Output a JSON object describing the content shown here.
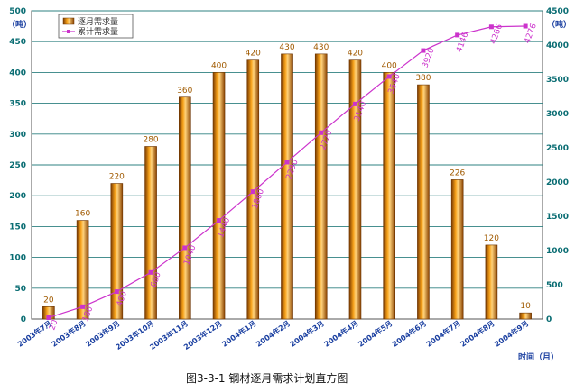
{
  "chart_data": {
    "type": "bar",
    "title": "图3-3-1   钢材逐月需求计划直方图",
    "categories": [
      "2003年7月",
      "2003年8月",
      "2003年9月",
      "2003年10月",
      "2003年11月",
      "2003年12月",
      "2004年1月",
      "2004年2月",
      "2004年3月",
      "2004年4月",
      "2004年5月",
      "2004年6月",
      "2004年7月",
      "2004年8月",
      "2004年9月"
    ],
    "series": [
      {
        "name": "逐月需求量",
        "type": "bar",
        "axis": "left",
        "values": [
          20,
          160,
          220,
          280,
          360,
          400,
          420,
          430,
          430,
          420,
          400,
          380,
          226,
          120,
          10
        ]
      },
      {
        "name": "累计需求量",
        "type": "line",
        "axis": "right",
        "values": [
          20,
          180,
          400,
          680,
          1040,
          1440,
          1860,
          2290,
          2720,
          3140,
          3540,
          3920,
          4146,
          4266,
          4276
        ]
      }
    ],
    "ylabel": "（吨）",
    "y2label": "（吨）",
    "xlabel": "时间（月）",
    "ylim": [
      0,
      500
    ],
    "y2lim": [
      0,
      4500
    ],
    "yticks": [
      0,
      50,
      100,
      150,
      200,
      250,
      300,
      350,
      400,
      450,
      500
    ],
    "y2ticks": [
      0,
      500,
      1000,
      1500,
      2000,
      2500,
      3000,
      3500,
      4000,
      4500
    ],
    "grid": true,
    "legend": "top-left",
    "colors": {
      "bar": "#e07b00",
      "line": "#cc33cc",
      "grid": "#2d8080"
    }
  }
}
